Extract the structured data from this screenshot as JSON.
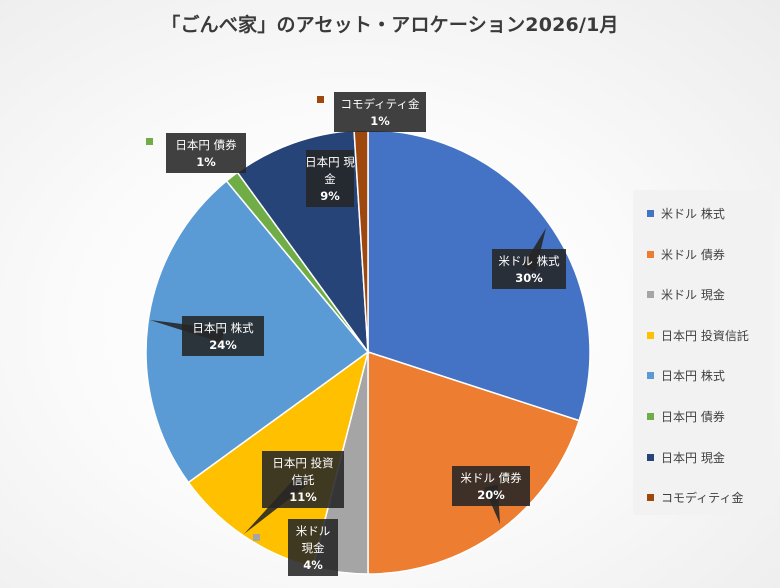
{
  "chart_data": {
    "type": "pie",
    "title": "「ごんべ家」のアセット・アロケーション2026/1月",
    "slices": [
      {
        "label": "米ドル 株式",
        "value": 30,
        "percent_label": "30%",
        "color": "#4472c4"
      },
      {
        "label": "米ドル 債券",
        "value": 20,
        "percent_label": "20%",
        "color": "#ed7d31"
      },
      {
        "label": "米ドル 現金",
        "value": 4,
        "percent_label": "4%",
        "color": "#a5a5a5"
      },
      {
        "label": "日本円 投資信託",
        "value": 11,
        "percent_label": "11%",
        "color": "#ffc000"
      },
      {
        "label": "日本円 株式",
        "value": 24,
        "percent_label": "24%",
        "color": "#5b9bd5"
      },
      {
        "label": "日本円 債券",
        "value": 1,
        "percent_label": "1%",
        "color": "#70ad47"
      },
      {
        "label": "日本円 現金",
        "value": 9,
        "percent_label": "9%",
        "color": "#264478"
      },
      {
        "label": "コモディティ金",
        "value": 1,
        "percent_label": "1%",
        "color": "#9e480e"
      }
    ],
    "legend_position": "right"
  }
}
